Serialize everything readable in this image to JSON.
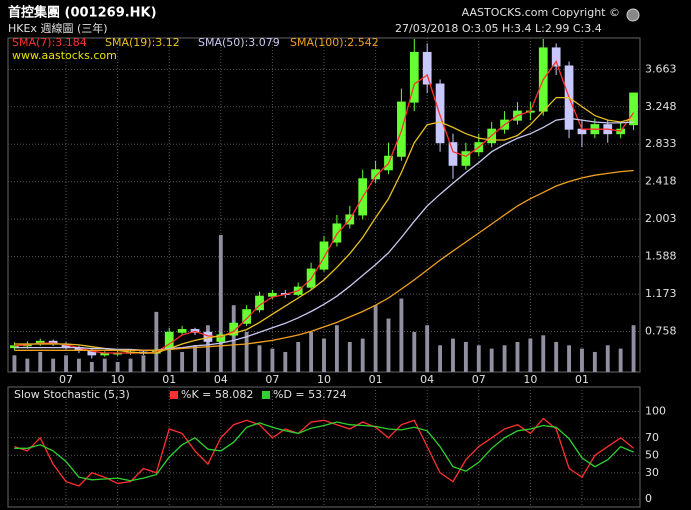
{
  "header": {
    "title": "首控集團 (001269.HK)",
    "subtitle": "HKEx 週線圖 (三年)",
    "quote": "27/03/2018  O:3.05  H:3.4  L:2.99  C:3.4",
    "copyright": "AASTOCKS.com Copyright ©",
    "website": "www.aastocks.com"
  },
  "chart_data": [
    {
      "type": "candlestick",
      "xlim": [
        -0.5,
        48.5
      ],
      "xticks": [
        {
          "value": 4,
          "label": "07"
        },
        {
          "value": 8,
          "label": "10"
        },
        {
          "value": 12,
          "label": "01"
        },
        {
          "value": 16,
          "label": "04"
        },
        {
          "value": 20,
          "label": "07"
        },
        {
          "value": 24,
          "label": "10"
        },
        {
          "value": 28,
          "label": "01"
        },
        {
          "value": 32,
          "label": "04"
        },
        {
          "value": 36,
          "label": "07"
        },
        {
          "value": 40,
          "label": "10"
        },
        {
          "value": 44,
          "label": "01"
        }
      ],
      "ylim": [
        0.31,
        4.01
      ],
      "yticks": [
        0.758,
        1.173,
        1.588,
        2.003,
        2.418,
        2.833,
        3.248,
        3.663
      ],
      "grid": true,
      "up_color": "#66ff33",
      "down_color": "#c8c8ff",
      "open": [
        0.58,
        0.6,
        0.62,
        0.65,
        0.62,
        0.58,
        0.55,
        0.5,
        0.52,
        0.52,
        0.53,
        0.52,
        0.56,
        0.75,
        0.78,
        0.75,
        0.65,
        0.72,
        0.85,
        1.0,
        1.15,
        1.18,
        1.17,
        1.25,
        1.45,
        1.75,
        1.95,
        2.05,
        2.45,
        2.55,
        2.7,
        3.3,
        3.85,
        3.5,
        2.85,
        2.6,
        2.75,
        2.85,
        3.0,
        3.1,
        3.2,
        3.2,
        3.9,
        3.7,
        3.0,
        2.95,
        3.05,
        2.95,
        3.05
      ],
      "high": [
        0.64,
        0.65,
        0.68,
        0.67,
        0.64,
        0.6,
        0.57,
        0.54,
        0.55,
        0.56,
        0.55,
        0.57,
        0.8,
        0.82,
        0.8,
        0.77,
        0.75,
        0.88,
        1.05,
        1.2,
        1.22,
        1.22,
        1.3,
        1.52,
        1.82,
        2.05,
        2.15,
        2.55,
        2.65,
        2.85,
        3.45,
        4.0,
        3.95,
        3.55,
        2.95,
        2.85,
        2.95,
        3.08,
        3.2,
        3.3,
        3.3,
        4.0,
        3.95,
        3.75,
        3.1,
        3.12,
        3.1,
        3.08,
        3.4
      ],
      "low": [
        0.55,
        0.57,
        0.6,
        0.6,
        0.56,
        0.52,
        0.46,
        0.48,
        0.49,
        0.5,
        0.5,
        0.51,
        0.54,
        0.72,
        0.72,
        0.62,
        0.63,
        0.7,
        0.82,
        0.97,
        1.12,
        1.13,
        1.15,
        1.22,
        1.42,
        1.7,
        1.9,
        2.0,
        2.4,
        2.5,
        2.65,
        3.2,
        3.4,
        2.75,
        2.45,
        2.55,
        2.7,
        2.8,
        2.95,
        3.05,
        3.1,
        3.15,
        3.6,
        2.9,
        2.8,
        2.9,
        2.85,
        2.9,
        2.99
      ],
      "close": [
        0.6,
        0.62,
        0.65,
        0.62,
        0.58,
        0.55,
        0.5,
        0.52,
        0.52,
        0.53,
        0.52,
        0.55,
        0.75,
        0.78,
        0.75,
        0.65,
        0.72,
        0.85,
        1.0,
        1.15,
        1.18,
        1.17,
        1.25,
        1.45,
        1.75,
        1.95,
        2.05,
        2.45,
        2.55,
        2.7,
        3.3,
        3.85,
        3.5,
        2.85,
        2.6,
        2.75,
        2.85,
        3.0,
        3.1,
        3.2,
        3.2,
        3.9,
        3.7,
        3.0,
        2.95,
        3.05,
        2.95,
        3.0,
        3.4
      ],
      "series": [
        {
          "name": "SMA(7):3.184",
          "color": "#ff3030",
          "values": [
            0.6,
            0.61,
            0.63,
            0.63,
            0.61,
            0.58,
            0.54,
            0.52,
            0.52,
            0.52,
            0.52,
            0.53,
            0.62,
            0.72,
            0.76,
            0.71,
            0.7,
            0.76,
            0.9,
            1.05,
            1.14,
            1.17,
            1.21,
            1.34,
            1.58,
            1.84,
            2.0,
            2.25,
            2.48,
            2.62,
            2.98,
            3.5,
            3.6,
            3.15,
            2.75,
            2.7,
            2.8,
            2.93,
            3.05,
            3.15,
            3.2,
            3.55,
            3.75,
            3.35,
            3.0,
            3.0,
            3.0,
            2.98,
            3.184
          ]
        },
        {
          "name": "SMA(19):3.12",
          "color": "#e8c020",
          "values": [
            0.62,
            0.62,
            0.62,
            0.62,
            0.62,
            0.61,
            0.59,
            0.57,
            0.55,
            0.53,
            0.52,
            0.52,
            0.57,
            0.62,
            0.66,
            0.69,
            0.71,
            0.74,
            0.78,
            0.86,
            0.95,
            1.04,
            1.13,
            1.22,
            1.33,
            1.47,
            1.62,
            1.8,
            2.02,
            2.23,
            2.52,
            2.85,
            3.05,
            3.08,
            3.02,
            2.95,
            2.9,
            2.88,
            2.88,
            2.93,
            3.05,
            3.2,
            3.35,
            3.35,
            3.25,
            3.15,
            3.1,
            3.08,
            3.12
          ]
        },
        {
          "name": "SMA(50):3.079",
          "color": "#c8c8f0",
          "values": [
            0.58,
            0.58,
            0.58,
            0.58,
            0.58,
            0.58,
            0.57,
            0.57,
            0.56,
            0.56,
            0.55,
            0.55,
            0.57,
            0.58,
            0.6,
            0.61,
            0.63,
            0.66,
            0.7,
            0.75,
            0.8,
            0.85,
            0.91,
            0.98,
            1.06,
            1.15,
            1.26,
            1.38,
            1.5,
            1.63,
            1.8,
            1.98,
            2.15,
            2.28,
            2.4,
            2.52,
            2.63,
            2.75,
            2.83,
            2.9,
            2.95,
            3.02,
            3.1,
            3.12,
            3.1,
            3.08,
            3.07,
            3.07,
            3.079
          ]
        },
        {
          "name": "SMA(100):2.542",
          "color": "#f0a020",
          "values": [
            0.55,
            0.55,
            0.55,
            0.55,
            0.55,
            0.55,
            0.55,
            0.55,
            0.55,
            0.55,
            0.55,
            0.55,
            0.56,
            0.57,
            0.58,
            0.59,
            0.6,
            0.61,
            0.62,
            0.64,
            0.66,
            0.69,
            0.72,
            0.76,
            0.81,
            0.86,
            0.92,
            0.98,
            1.05,
            1.13,
            1.23,
            1.33,
            1.44,
            1.55,
            1.65,
            1.75,
            1.85,
            1.95,
            2.05,
            2.15,
            2.23,
            2.3,
            2.37,
            2.42,
            2.46,
            2.49,
            2.51,
            2.53,
            2.542
          ]
        }
      ],
      "volume": {
        "color": "#9090a0",
        "ylim": [
          0,
          100
        ],
        "values": [
          5,
          4,
          6,
          4,
          5,
          4,
          3,
          4,
          3,
          4,
          5,
          18,
          10,
          6,
          8,
          14,
          41,
          20,
          12,
          8,
          7,
          6,
          9,
          12,
          10,
          14,
          9,
          10,
          20,
          16,
          22,
          12,
          14,
          8,
          10,
          9,
          8,
          7,
          8,
          9,
          10,
          11,
          9,
          8,
          7,
          6,
          8,
          7,
          14
        ]
      }
    },
    {
      "type": "line",
      "title": "Slow Stochastic (5,3)",
      "xlim": [
        -0.5,
        48.5
      ],
      "ylim": [
        -9,
        128
      ],
      "yticks": [
        0,
        30,
        50,
        70,
        100
      ],
      "grid": true,
      "series": [
        {
          "name": "%K = 58.082",
          "color": "#ff3030",
          "values": [
            60,
            55,
            70,
            40,
            20,
            15,
            30,
            25,
            18,
            20,
            35,
            30,
            80,
            75,
            55,
            40,
            70,
            85,
            90,
            85,
            70,
            80,
            75,
            88,
            90,
            85,
            80,
            88,
            82,
            70,
            85,
            90,
            60,
            30,
            20,
            45,
            60,
            70,
            80,
            85,
            75,
            92,
            80,
            35,
            25,
            50,
            60,
            70,
            58.082
          ]
        },
        {
          "name": "%D = 53.724",
          "color": "#30d030",
          "values": [
            58,
            58,
            62,
            55,
            43,
            25,
            22,
            23,
            24,
            21,
            24,
            28,
            48,
            62,
            70,
            57,
            55,
            65,
            82,
            87,
            82,
            78,
            75,
            81,
            84,
            88,
            85,
            84,
            83,
            80,
            79,
            82,
            78,
            60,
            37,
            32,
            42,
            58,
            70,
            78,
            80,
            84,
            82,
            69,
            47,
            37,
            45,
            60,
            53.724
          ]
        }
      ]
    }
  ]
}
